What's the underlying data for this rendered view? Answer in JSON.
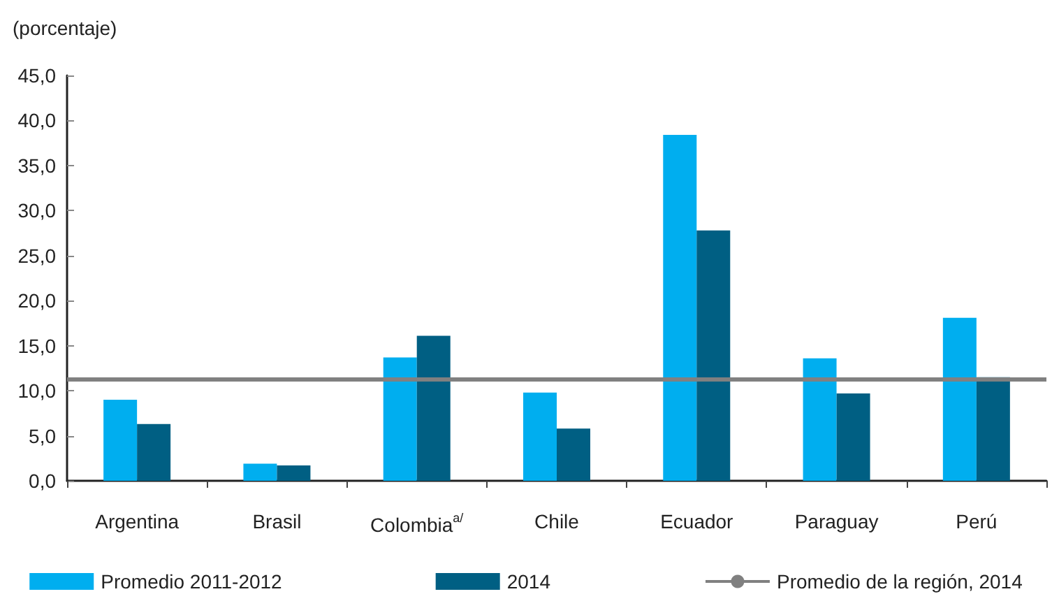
{
  "chart_data": {
    "type": "bar",
    "ylabel": "(porcentaje)",
    "categories": [
      "Argentina",
      "Brasil",
      "Colombia$^{a/}$",
      "Chile",
      "Ecuador",
      "Paraguay",
      "Perú"
    ],
    "series": [
      {
        "name": "Promedio 2011-2012",
        "color": "#00aeef",
        "values": [
          9.0,
          1.9,
          13.7,
          9.8,
          38.4,
          13.6,
          18.1
        ]
      },
      {
        "name": "2014",
        "color": "#005f83",
        "values": [
          6.3,
          1.7,
          16.1,
          5.8,
          27.8,
          9.7,
          11.5
        ]
      }
    ],
    "ref_lines": [
      {
        "axis": "y",
        "value": 11.3,
        "label": "Promedio de la región, 2014",
        "color": "#808080",
        "line_style": "solid"
      }
    ],
    "ylim": [
      0,
      45
    ],
    "yticks": [
      {
        "value": 0,
        "label": "0,0"
      },
      {
        "value": 5,
        "label": "5,0"
      },
      {
        "value": 10,
        "label": "10,0"
      },
      {
        "value": 15,
        "label": "15,0"
      },
      {
        "value": 20,
        "label": "20,0"
      },
      {
        "value": 25,
        "label": "25,0"
      },
      {
        "value": 30,
        "label": "30,0"
      },
      {
        "value": 35,
        "label": "35,0"
      },
      {
        "value": 40,
        "label": "40,0"
      },
      {
        "value": 45,
        "label": "45,0"
      }
    ],
    "grid": false,
    "legend": "bottom"
  }
}
